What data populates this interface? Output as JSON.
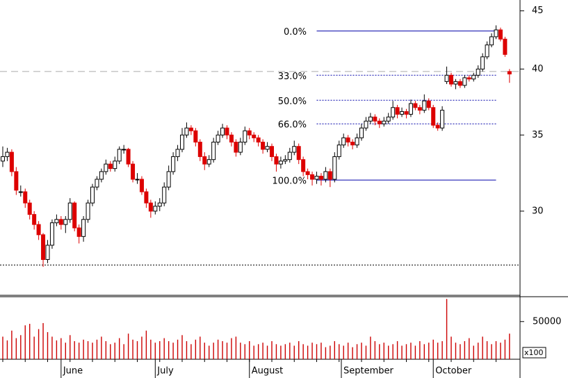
{
  "chart_data": {
    "type": "candlestick",
    "log_scale": true,
    "ylim": [
      25.3,
      46
    ],
    "yticks": [
      30,
      35,
      40,
      45
    ],
    "up_color": "#ffffff",
    "down_color": "#dd0000",
    "candles": [
      [
        33.2,
        34.2,
        32.8,
        33.5
      ],
      [
        33.5,
        34.1,
        33.2,
        33.8
      ],
      [
        33.8,
        34.0,
        32.2,
        32.5
      ],
      [
        32.5,
        32.8,
        31.0,
        31.3
      ],
      [
        31.2,
        31.6,
        30.9,
        31.2
      ],
      [
        31.2,
        31.4,
        30.2,
        30.5
      ],
      [
        30.5,
        30.7,
        29.5,
        29.8
      ],
      [
        29.8,
        30.0,
        28.9,
        29.2
      ],
      [
        29.2,
        29.4,
        28.3,
        28.6
      ],
      [
        28.6,
        28.7,
        26.8,
        27.2
      ],
      [
        27.2,
        28.3,
        27.0,
        28.0
      ],
      [
        28.0,
        29.5,
        27.8,
        29.3
      ],
      [
        29.3,
        29.8,
        29.1,
        29.5
      ],
      [
        29.5,
        29.7,
        28.9,
        29.2
      ],
      [
        29.2,
        29.7,
        28.7,
        29.5
      ],
      [
        29.5,
        30.8,
        29.3,
        30.5
      ],
      [
        30.5,
        30.6,
        28.8,
        29.0
      ],
      [
        29.0,
        29.2,
        28.1,
        28.5
      ],
      [
        28.5,
        29.7,
        28.2,
        29.5
      ],
      [
        29.5,
        30.7,
        29.3,
        30.5
      ],
      [
        30.5,
        31.7,
        30.3,
        31.5
      ],
      [
        31.5,
        32.2,
        31.3,
        32.0
      ],
      [
        32.0,
        32.7,
        31.8,
        32.5
      ],
      [
        32.5,
        33.3,
        32.3,
        33.0
      ],
      [
        33.0,
        33.2,
        32.5,
        32.7
      ],
      [
        32.7,
        33.5,
        32.5,
        33.2
      ],
      [
        33.2,
        34.2,
        33.0,
        34.0
      ],
      [
        34.0,
        34.3,
        33.7,
        34.0
      ],
      [
        34.0,
        34.1,
        32.8,
        33.0
      ],
      [
        33.0,
        33.2,
        31.8,
        32.0
      ],
      [
        32.0,
        32.4,
        31.7,
        32.0
      ],
      [
        32.0,
        32.2,
        31.0,
        31.2
      ],
      [
        31.2,
        31.4,
        30.2,
        30.5
      ],
      [
        30.5,
        30.7,
        29.6,
        30.0
      ],
      [
        30.0,
        30.6,
        29.8,
        30.3
      ],
      [
        30.3,
        30.8,
        30.0,
        30.5
      ],
      [
        30.5,
        31.8,
        30.3,
        31.5
      ],
      [
        31.5,
        32.9,
        31.3,
        32.5
      ],
      [
        32.5,
        33.8,
        32.3,
        33.5
      ],
      [
        33.5,
        34.3,
        33.2,
        34.0
      ],
      [
        34.0,
        35.5,
        33.8,
        35.0
      ],
      [
        35.0,
        35.9,
        34.8,
        35.5
      ],
      [
        35.5,
        35.7,
        35.0,
        35.3
      ],
      [
        35.3,
        35.5,
        34.2,
        34.5
      ],
      [
        34.5,
        34.7,
        33.2,
        33.5
      ],
      [
        33.5,
        33.8,
        32.6,
        33.0
      ],
      [
        33.0,
        33.6,
        32.8,
        33.3
      ],
      [
        33.3,
        34.8,
        33.1,
        34.5
      ],
      [
        34.5,
        35.3,
        34.3,
        35.0
      ],
      [
        35.0,
        35.8,
        34.8,
        35.5
      ],
      [
        35.5,
        35.7,
        34.7,
        35.0
      ],
      [
        35.0,
        35.2,
        34.2,
        34.5
      ],
      [
        34.5,
        34.7,
        33.5,
        33.8
      ],
      [
        33.8,
        34.8,
        33.6,
        34.5
      ],
      [
        34.5,
        35.6,
        34.3,
        35.3
      ],
      [
        35.3,
        35.5,
        34.7,
        35.0
      ],
      [
        35.0,
        35.2,
        34.5,
        34.8
      ],
      [
        34.8,
        35.0,
        34.2,
        34.5
      ],
      [
        34.5,
        34.7,
        33.7,
        34.0
      ],
      [
        34.0,
        34.5,
        33.8,
        34.2
      ],
      [
        34.2,
        34.4,
        33.2,
        33.5
      ],
      [
        33.5,
        33.7,
        32.5,
        33.0
      ],
      [
        33.0,
        33.5,
        32.7,
        33.2
      ],
      [
        33.2,
        33.6,
        33.0,
        33.3
      ],
      [
        33.3,
        34.1,
        33.1,
        33.8
      ],
      [
        33.8,
        34.6,
        33.6,
        34.2
      ],
      [
        34.2,
        34.4,
        33.0,
        33.3
      ],
      [
        33.3,
        33.5,
        32.2,
        32.5
      ],
      [
        32.5,
        32.7,
        32.0,
        32.3
      ],
      [
        32.3,
        32.5,
        31.6,
        32.0
      ],
      [
        32.0,
        32.5,
        31.7,
        32.2
      ],
      [
        32.2,
        32.4,
        31.6,
        32.0
      ],
      [
        32.0,
        32.8,
        31.8,
        32.5
      ],
      [
        32.5,
        32.7,
        31.5,
        32.0
      ],
      [
        32.0,
        33.8,
        31.8,
        33.5
      ],
      [
        33.5,
        34.6,
        33.3,
        34.3
      ],
      [
        34.3,
        35.1,
        34.1,
        34.8
      ],
      [
        34.8,
        35.0,
        34.2,
        34.5
      ],
      [
        34.5,
        34.7,
        34.0,
        34.3
      ],
      [
        34.3,
        35.1,
        34.1,
        34.8
      ],
      [
        34.8,
        35.8,
        34.6,
        35.5
      ],
      [
        35.5,
        36.3,
        35.3,
        36.0
      ],
      [
        36.0,
        36.6,
        35.8,
        36.3
      ],
      [
        36.3,
        36.5,
        35.7,
        36.0
      ],
      [
        36.0,
        36.2,
        35.5,
        35.8
      ],
      [
        35.8,
        36.3,
        35.6,
        36.0
      ],
      [
        36.0,
        36.6,
        35.8,
        36.3
      ],
      [
        36.3,
        37.5,
        36.1,
        37.0
      ],
      [
        37.0,
        37.2,
        36.2,
        36.5
      ],
      [
        36.5,
        37.0,
        36.3,
        36.7
      ],
      [
        36.7,
        36.9,
        36.2,
        36.5
      ],
      [
        36.5,
        37.6,
        36.3,
        37.3
      ],
      [
        37.3,
        37.5,
        36.8,
        37.0
      ],
      [
        37.0,
        37.2,
        36.5,
        36.8
      ],
      [
        36.8,
        38.0,
        36.6,
        37.5
      ],
      [
        37.5,
        37.7,
        36.8,
        37.0
      ],
      [
        37.0,
        37.2,
        35.5,
        35.7
      ],
      [
        35.7,
        35.9,
        35.3,
        35.5
      ],
      [
        35.5,
        37.1,
        35.3,
        36.8
      ],
      [
        39.0,
        40.2,
        38.8,
        39.5
      ],
      [
        39.5,
        39.7,
        38.6,
        38.8
      ],
      [
        38.8,
        39.2,
        38.4,
        39.0
      ],
      [
        39.0,
        39.2,
        38.5,
        38.7
      ],
      [
        38.7,
        39.5,
        38.5,
        39.3
      ],
      [
        39.3,
        39.5,
        39.0,
        39.2
      ],
      [
        39.2,
        39.7,
        39.0,
        39.5
      ],
      [
        39.5,
        40.3,
        39.3,
        40.0
      ],
      [
        40.0,
        41.3,
        39.8,
        41.0
      ],
      [
        41.0,
        42.3,
        40.8,
        42.0
      ],
      [
        42.0,
        43.0,
        41.8,
        42.7
      ],
      [
        42.7,
        43.7,
        42.5,
        43.3
      ],
      [
        43.3,
        43.5,
        42.3,
        42.5
      ],
      [
        42.5,
        42.7,
        41.0,
        41.2
      ],
      [
        39.8,
        40.0,
        38.9,
        39.6
      ]
    ],
    "volume": [
      30000,
      25000,
      38000,
      28000,
      32000,
      45000,
      47000,
      30000,
      40000,
      48000,
      36000,
      30000,
      25000,
      28000,
      22000,
      32000,
      24000,
      22000,
      26000,
      24000,
      22000,
      26000,
      30000,
      24000,
      20000,
      22000,
      28000,
      20000,
      34000,
      26000,
      24000,
      30000,
      38000,
      26000,
      22000,
      24000,
      28000,
      24000,
      22000,
      26000,
      32000,
      24000,
      20000,
      26000,
      30000,
      22000,
      18000,
      22000,
      26000,
      24000,
      22000,
      28000,
      30000,
      22000,
      20000,
      24000,
      18000,
      20000,
      22000,
      18000,
      24000,
      20000,
      18000,
      20000,
      22000,
      18000,
      24000,
      20000,
      18000,
      22000,
      20000,
      22000,
      16000,
      18000,
      24000,
      20000,
      18000,
      22000,
      16000,
      20000,
      22000,
      18000,
      30000,
      24000,
      20000,
      22000,
      18000,
      20000,
      24000,
      18000,
      20000,
      22000,
      18000,
      24000,
      20000,
      22000,
      26000,
      22000,
      24000,
      80000,
      30000,
      22000,
      20000,
      24000,
      28000,
      18000,
      22000,
      30000,
      24000,
      20000,
      24000,
      22000,
      26000,
      34000
    ],
    "vlim": [
      0,
      83000
    ],
    "vticks": [
      50000
    ],
    "volume_unit": "x100",
    "volume_color": "#cc0000",
    "xticks": [
      {
        "value": 13,
        "label": "June"
      },
      {
        "value": 34,
        "label": "July"
      },
      {
        "value": 55,
        "label": "August"
      },
      {
        "value": 75.5,
        "label": "September"
      },
      {
        "value": 96,
        "label": "October"
      }
    ],
    "fib_range": [
      70,
      110
    ],
    "fib_levels": [
      {
        "label": "0.0%",
        "value": 43.2,
        "style": "solid"
      },
      {
        "label": "33.0%",
        "value": 39.5,
        "style": "dotted"
      },
      {
        "label": "50.0%",
        "value": 37.55,
        "style": "dotted"
      },
      {
        "label": "66.0%",
        "value": 35.8,
        "style": "dotted"
      },
      {
        "label": "100.0%",
        "value": 31.95,
        "style": "solid"
      }
    ],
    "fib_color": "#0000aa",
    "hlines": [
      {
        "value": 39.8,
        "style": "dashed",
        "color": "#aaaaaa"
      },
      {
        "value": 26.9,
        "style": "dotted",
        "color": "#000000"
      }
    ]
  }
}
